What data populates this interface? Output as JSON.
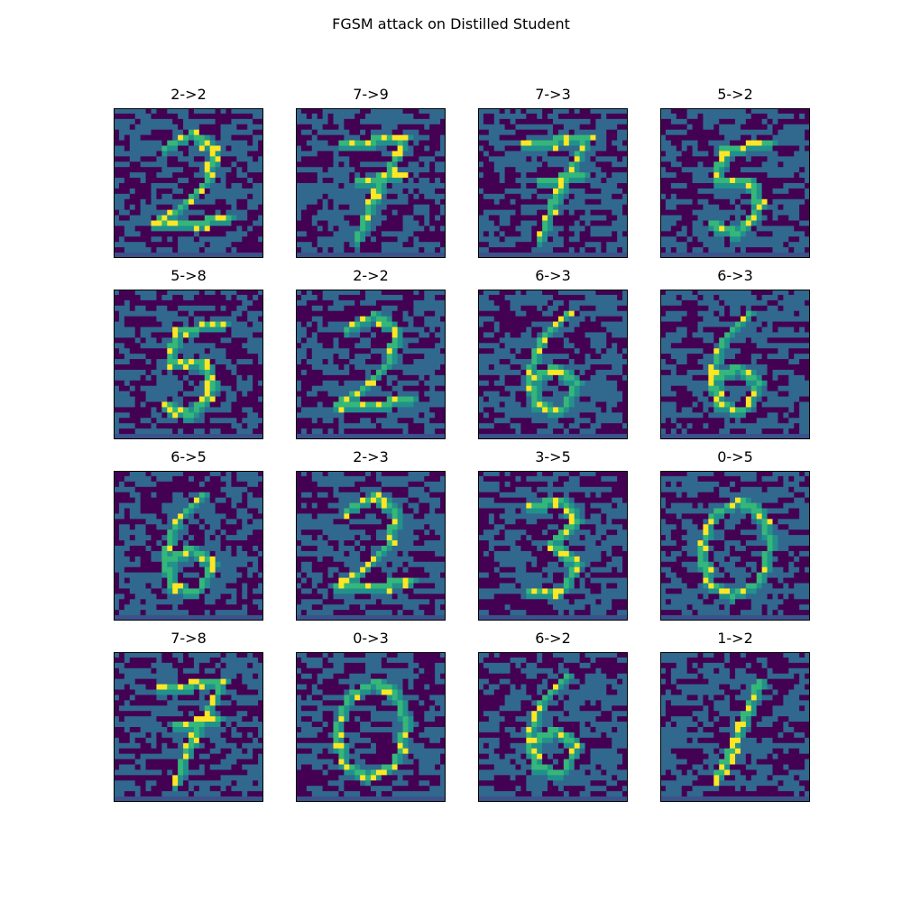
{
  "chart_data": {
    "type": "heatmap",
    "title": "FGSM attack on Distilled Student",
    "grid": false,
    "colormap": "viridis",
    "colors": {
      "background_noise_low": "#440154",
      "background_noise_high": "#31688e",
      "bottom_band": "#3b528b",
      "stroke": "#21918c",
      "stroke_bright": "#35b779",
      "stroke_peak": "#fde725"
    },
    "panels": [
      {
        "title": "2->2",
        "original": 2,
        "predicted": 2
      },
      {
        "title": "7->9",
        "original": 7,
        "predicted": 9
      },
      {
        "title": "7->3",
        "original": 7,
        "predicted": 3
      },
      {
        "title": "5->2",
        "original": 5,
        "predicted": 2
      },
      {
        "title": "5->8",
        "original": 5,
        "predicted": 8
      },
      {
        "title": "2->2",
        "original": 2,
        "predicted": 2
      },
      {
        "title": "6->3",
        "original": 6,
        "predicted": 3
      },
      {
        "title": "6->3",
        "original": 6,
        "predicted": 3
      },
      {
        "title": "6->5",
        "original": 6,
        "predicted": 5
      },
      {
        "title": "2->3",
        "original": 2,
        "predicted": 3
      },
      {
        "title": "3->5",
        "original": 3,
        "predicted": 5
      },
      {
        "title": "0->5",
        "original": 0,
        "predicted": 5
      },
      {
        "title": "7->8",
        "original": 7,
        "predicted": 8
      },
      {
        "title": "0->3",
        "original": 0,
        "predicted": 3
      },
      {
        "title": "6->2",
        "original": 6,
        "predicted": 2
      },
      {
        "title": "1->2",
        "original": 1,
        "predicted": 2
      }
    ]
  }
}
